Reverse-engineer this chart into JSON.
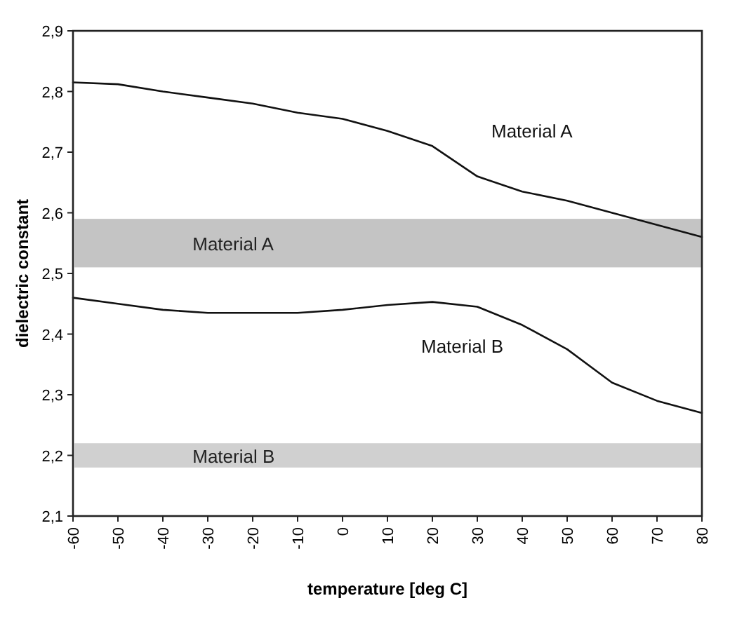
{
  "chart_data": {
    "type": "line",
    "xlabel": "temperature [deg C]",
    "ylabel": "dielectric constant",
    "x": [
      -60,
      -50,
      -40,
      -30,
      -20,
      -10,
      0,
      10,
      20,
      30,
      40,
      50,
      60,
      70,
      80
    ],
    "series": [
      {
        "name": "Material A",
        "color": "#111111",
        "values": [
          2.815,
          2.812,
          2.8,
          2.79,
          2.78,
          2.765,
          2.755,
          2.735,
          2.71,
          2.66,
          2.635,
          2.62,
          2.6,
          2.58,
          2.56
        ]
      },
      {
        "name": "Material B",
        "color": "#111111",
        "values": [
          2.46,
          2.45,
          2.44,
          2.435,
          2.435,
          2.435,
          2.44,
          2.448,
          2.453,
          2.445,
          2.415,
          2.375,
          2.32,
          2.29,
          2.27
        ]
      }
    ],
    "xlim": [
      -60,
      80
    ],
    "xticks": [
      -60,
      -50,
      -40,
      -30,
      -20,
      -10,
      0,
      10,
      20,
      30,
      40,
      50,
      60,
      70,
      80
    ],
    "ylim": [
      2.1,
      2.9
    ],
    "yticks": [
      {
        "value": 2.1,
        "label": "2,1"
      },
      {
        "value": 2.2,
        "label": "2,2"
      },
      {
        "value": 2.3,
        "label": "2,3"
      },
      {
        "value": 2.4,
        "label": "2,4"
      },
      {
        "value": 2.5,
        "label": "2,5"
      },
      {
        "value": 2.6,
        "label": "2,6"
      },
      {
        "value": 2.7,
        "label": "2,7"
      },
      {
        "value": 2.8,
        "label": "2,8"
      },
      {
        "value": 2.9,
        "label": "2,9"
      }
    ],
    "bands": [
      {
        "axis": "y",
        "from": 2.51,
        "to": 2.59,
        "label": "Material A",
        "color": "#c4c4c4"
      },
      {
        "axis": "y",
        "from": 2.18,
        "to": 2.22,
        "label": "Material B",
        "color": "#d0d0d0"
      }
    ],
    "grid": false,
    "marker": "none",
    "line_style": "solid"
  }
}
